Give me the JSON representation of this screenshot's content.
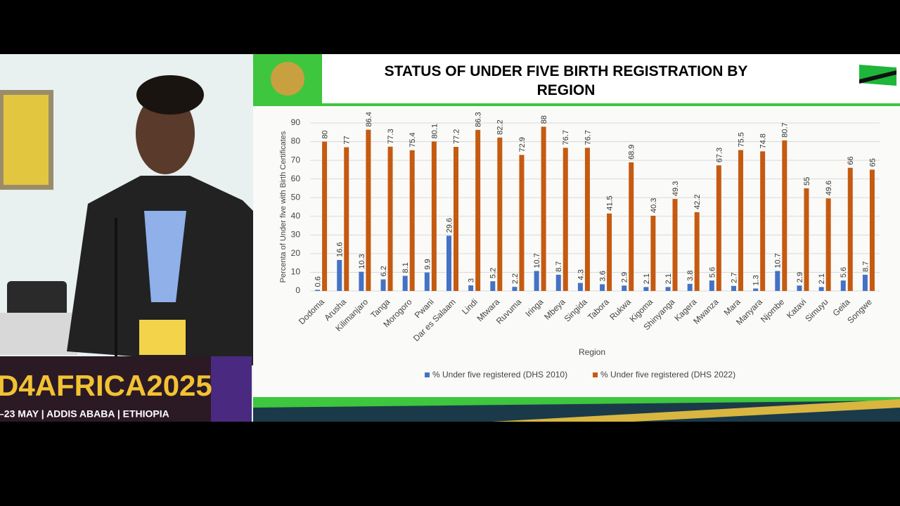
{
  "banner": {
    "event": "D4AFRICA2025",
    "dates": "–23 MAY | ADDIS ABABA | ETHIOPIA"
  },
  "chart_data": {
    "type": "bar",
    "title": "STATUS OF UNDER FIVE BIRTH REGISTRATION BY REGION",
    "y_label": "Percenta of Under five with Birth Certificates",
    "x_label": "Region",
    "categories": [
      "Dodoma",
      "Arusha",
      "Kilimanjaro",
      "Tanga",
      "Morogoro",
      "Pwani",
      "Dar es Salaam",
      "Lindi",
      "Mtwara",
      "Ruvuma",
      "Iringa",
      "Mbeya",
      "Singida",
      "Tabora",
      "Rukwa",
      "Kigoma",
      "Shinyanga",
      "Kagera",
      "Mwanza",
      "Mara",
      "Manyara",
      "Njombe",
      "Katavi",
      "Simuyu",
      "Geita",
      "Songwe"
    ],
    "series": [
      {
        "name": "% Under five registered (DHS 2010)",
        "color": "#4472c4",
        "values": [
          0.6,
          16.6,
          10.3,
          6.2,
          8.1,
          9.9,
          29.6,
          3,
          5.2,
          2.2,
          10.7,
          8.7,
          4.3,
          3.6,
          2.9,
          2.1,
          2.1,
          3.8,
          5.6,
          2.7,
          1.3,
          10.7,
          2.9,
          2.1,
          5.6,
          8.7
        ]
      },
      {
        "name": "% Under five registered (DHS 2022)",
        "color": "#c55a11",
        "values": [
          80,
          77,
          86.4,
          77.3,
          75.4,
          80.1,
          77.2,
          86.3,
          82.2,
          72.9,
          88,
          76.7,
          76.7,
          41.5,
          68.9,
          40.3,
          49.3,
          42.2,
          67.3,
          75.5,
          74.8,
          80.7,
          55,
          49.6,
          66,
          65
        ]
      }
    ],
    "ylim": [
      0,
      90
    ],
    "yticks": [
      0,
      10,
      20,
      30,
      40,
      50,
      60,
      70,
      80,
      90
    ],
    "grid": true
  }
}
